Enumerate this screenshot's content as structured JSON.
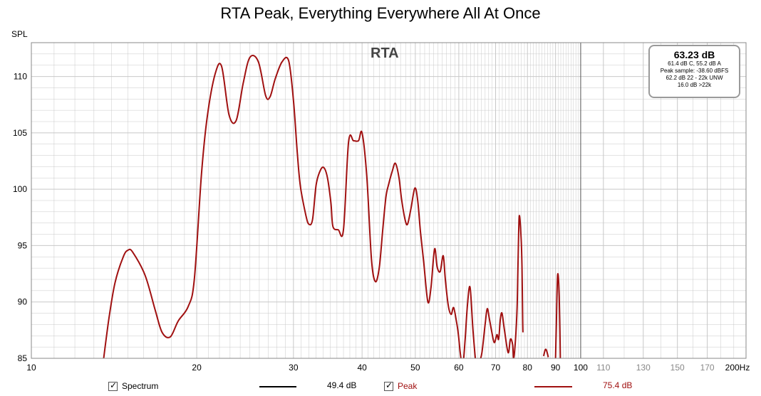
{
  "title": "RTA Peak, Everything Everywhere All At Once",
  "ylabel": "SPL",
  "rta_label": "RTA",
  "info": {
    "main": "63.23 dB",
    "lines": [
      "61.4 dB C, 55.2 dB A",
      "Peak sample: -38.60 dBFS",
      "62.2 dB 22 - 22k UNW",
      "16.0 dB >22k"
    ]
  },
  "legend": [
    {
      "label": "Spectrum",
      "value": "49.4 dB",
      "color": "#000000",
      "checked": true
    },
    {
      "label": "Peak",
      "value": "75.4 dB",
      "color": "#a01010",
      "checked": true
    }
  ],
  "colors": {
    "peak": "#a01010",
    "grid": "#c8c8c8",
    "label_light": "#888888"
  },
  "chart_data": {
    "type": "line",
    "x_scale": "log",
    "xlim": [
      10,
      200
    ],
    "ylim": [
      85,
      113
    ],
    "x_ticks": [
      {
        "v": 10,
        "t": "10"
      },
      {
        "v": 20,
        "t": "20"
      },
      {
        "v": 30,
        "t": "30"
      },
      {
        "v": 40,
        "t": "40"
      },
      {
        "v": 50,
        "t": "50"
      },
      {
        "v": 60,
        "t": "60"
      },
      {
        "v": 70,
        "t": "70"
      },
      {
        "v": 80,
        "t": "80"
      },
      {
        "v": 90,
        "t": "90"
      },
      {
        "v": 100,
        "t": "100"
      },
      {
        "v": 110,
        "t": "110"
      },
      {
        "v": 130,
        "t": "130"
      },
      {
        "v": 150,
        "t": "150"
      },
      {
        "v": 170,
        "t": "170"
      },
      {
        "v": 200,
        "t": "200Hz"
      }
    ],
    "y_ticks": [
      85,
      90,
      95,
      100,
      105,
      110
    ],
    "grid": true,
    "series": [
      {
        "name": "Peak",
        "x": [
          13.5,
          13.85,
          14.2,
          14.7,
          15.0,
          15.3,
          16.1,
          16.8,
          17.3,
          17.9,
          18.5,
          19.3,
          19.8,
          20.4,
          20.9,
          21.6,
          22.2,
          22.9,
          23.6,
          24.3,
          25.0,
          25.9,
          26.7,
          27.2,
          27.8,
          28.6,
          29.4,
          30.0,
          30.5,
          30.9,
          31.6,
          32.0,
          32.5,
          33.0,
          33.6,
          34.1,
          34.6,
          35.1,
          35.4,
          36.2,
          37.0,
          37.8,
          38.6,
          39.4,
          40.0,
          40.8,
          41.6,
          42.3,
          43.0,
          43.6,
          44.2,
          44.7,
          45.4,
          46.0,
          46.7,
          47.2,
          47.9,
          48.4,
          49.1,
          49.9,
          50.5,
          51.1,
          51.8,
          52.7,
          53.4,
          54.2,
          54.8,
          55.5,
          56.2,
          56.7,
          57.4,
          58.1,
          58.7,
          59.4,
          59.9,
          60.4,
          61.0,
          61.6,
          62.2,
          62.9,
          63.7,
          64.6,
          65.4,
          66.1,
          67.0,
          67.6,
          68.2,
          68.8,
          69.6,
          70.4,
          70.9,
          71.4,
          71.9,
          72.7,
          73.8,
          74.5,
          75.2,
          75.5,
          76.1,
          76.6,
          76.9,
          77.3,
          77.9,
          78.2,
          78.4,
          78.5
        ],
        "y": [
          84.5,
          88.6,
          91.7,
          94.0,
          94.6,
          94.4,
          92.4,
          89.3,
          87.3,
          86.9,
          88.3,
          89.6,
          92.0,
          101.3,
          106.4,
          110.2,
          110.9,
          106.6,
          106.1,
          109.4,
          111.7,
          111.3,
          108.3,
          108.2,
          109.8,
          111.3,
          111.4,
          107.9,
          103.1,
          100.2,
          97.7,
          96.9,
          97.3,
          100.4,
          101.7,
          101.9,
          101.0,
          98.8,
          96.7,
          96.4,
          96.4,
          104.2,
          104.3,
          104.3,
          105.0,
          101.1,
          93.8,
          91.8,
          93.1,
          96.3,
          99.3,
          100.4,
          101.6,
          102.3,
          101.0,
          99.1,
          97.3,
          96.9,
          98.3,
          100.1,
          99.0,
          96.2,
          93.5,
          90.0,
          91.3,
          94.7,
          93.1,
          92.7,
          94.1,
          92.0,
          89.7,
          88.9,
          89.5,
          88.3,
          87.1,
          85.4,
          84.3,
          86.6,
          89.7,
          91.3,
          87.4,
          84.2,
          84.7,
          85.5,
          88.0,
          89.4,
          88.5,
          87.5,
          86.4,
          87.1,
          86.7,
          88.4,
          89.0,
          87.4,
          85.5,
          86.7,
          86.2,
          85.0,
          86.7,
          89.5,
          93.4,
          97.6,
          95.7,
          93.0,
          88.6,
          87.3
        ]
      },
      {
        "name": "Peak",
        "x": [
          85.6,
          85.9,
          86.1,
          86.4,
          86.8,
          87.3
        ],
        "y": [
          85.2,
          85.5,
          85.7,
          85.8,
          85.6,
          85.1
        ]
      },
      {
        "name": "Peak",
        "x": [
          89.9,
          90.3,
          90.8,
          91.4,
          91.9
        ],
        "y": [
          84.0,
          88.0,
          92.4,
          90.5,
          84.0
        ]
      }
    ]
  }
}
